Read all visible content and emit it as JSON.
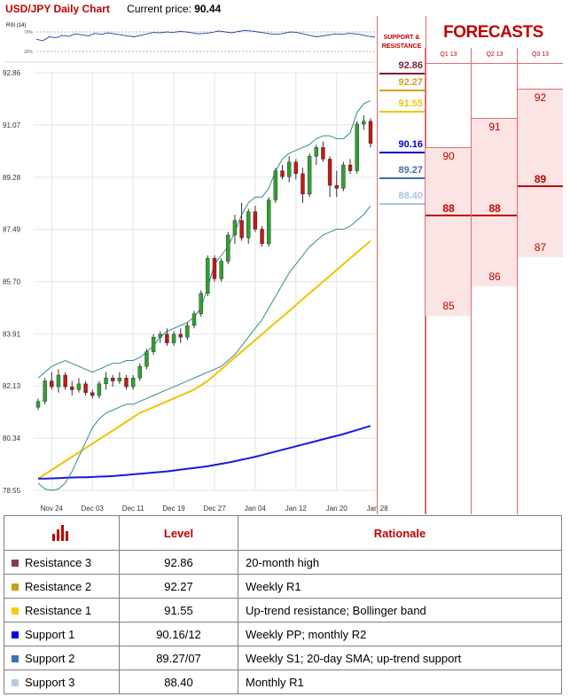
{
  "header": {
    "title": "USD/JPY Daily Chart",
    "price_label": "Current price:",
    "price_value": "90.44"
  },
  "rsi": {
    "label": "RSI (14)",
    "upper": "70%",
    "lower": "30%",
    "values": [
      55,
      52,
      60,
      58,
      63,
      61,
      66,
      64,
      62,
      67,
      65,
      68,
      66,
      64,
      62,
      60,
      63,
      66,
      69,
      68,
      70,
      69,
      71,
      70,
      68,
      66,
      67,
      69,
      72,
      70,
      68,
      71,
      73,
      72,
      70,
      68,
      66,
      65,
      67,
      70,
      69,
      66,
      63,
      60,
      62,
      64,
      66,
      65,
      67,
      66,
      64,
      61,
      60
    ]
  },
  "sr_panel": {
    "title": "SUPPORT & RESISTANCE",
    "levels": [
      {
        "label": "92.86",
        "value": 92.86,
        "color": "#7a1f33"
      },
      {
        "label": "92.27",
        "value": 92.27,
        "color": "#d4a017"
      },
      {
        "label": "91.55",
        "value": 91.55,
        "color": "#f1c40f"
      },
      {
        "label": "90.16",
        "value": 90.16,
        "color": "#0000cc"
      },
      {
        "label": "89.27",
        "value": 89.27,
        "color": "#3f6fa8"
      },
      {
        "label": "88.40",
        "value": 88.4,
        "color": "#a9c4dc"
      }
    ]
  },
  "forecasts": {
    "title": "FORECASTS",
    "quarters": [
      {
        "name": "Q1 13",
        "high": "90",
        "mid": "88",
        "low": "85",
        "high_v": 90,
        "mid_v": 88,
        "low_v": 85
      },
      {
        "name": "Q2 13",
        "high": "91",
        "mid": "88",
        "low": "86",
        "high_v": 91,
        "mid_v": 88,
        "low_v": 86
      },
      {
        "name": "Q3 13",
        "high": "92",
        "mid": "89",
        "low": "87",
        "high_v": 92,
        "mid_v": 89,
        "low_v": 87
      }
    ]
  },
  "chart_data": {
    "type": "line",
    "title": "USD/JPY Daily Chart",
    "ylim": [
      78.55,
      92.86
    ],
    "y_ticks": [
      "92.86",
      "91.07",
      "89.28",
      "87.49",
      "85.70",
      "83.91",
      "82.13",
      "80.34",
      "78.55"
    ],
    "y_tick_values": [
      92.86,
      91.07,
      89.28,
      87.49,
      85.7,
      83.91,
      82.13,
      80.34,
      78.55
    ],
    "x_ticks": [
      "Nov 24",
      "Dec 03",
      "Dec 11",
      "Dec 19",
      "Dec 27",
      "Jan 04",
      "Jan 12",
      "Jan 20",
      "Jan 28"
    ],
    "x_tick_index": [
      2,
      8,
      14,
      20,
      26,
      32,
      38,
      44,
      50
    ],
    "candles": [
      [
        81.4,
        81.7,
        81.3,
        81.6
      ],
      [
        81.6,
        82.4,
        81.5,
        82.3
      ],
      [
        82.3,
        82.6,
        82.0,
        82.1
      ],
      [
        82.1,
        82.7,
        81.9,
        82.5
      ],
      [
        82.5,
        82.6,
        82.0,
        82.1
      ],
      [
        82.1,
        82.3,
        81.8,
        82.0
      ],
      [
        82.0,
        82.4,
        81.9,
        82.2
      ],
      [
        82.2,
        82.3,
        81.8,
        81.9
      ],
      [
        81.9,
        82.0,
        81.7,
        81.8
      ],
      [
        81.8,
        82.3,
        81.7,
        82.2
      ],
      [
        82.2,
        82.6,
        82.0,
        82.4
      ],
      [
        82.4,
        82.5,
        82.1,
        82.3
      ],
      [
        82.3,
        82.6,
        82.2,
        82.4
      ],
      [
        82.4,
        82.5,
        82.0,
        82.1
      ],
      [
        82.1,
        82.5,
        82.0,
        82.4
      ],
      [
        82.4,
        82.9,
        82.3,
        82.8
      ],
      [
        82.8,
        83.4,
        82.7,
        83.3
      ],
      [
        83.3,
        83.9,
        83.2,
        83.8
      ],
      [
        83.8,
        84.0,
        83.6,
        83.9
      ],
      [
        83.9,
        84.1,
        83.5,
        83.6
      ],
      [
        83.6,
        84.0,
        83.5,
        83.9
      ],
      [
        83.9,
        84.1,
        83.6,
        83.8
      ],
      [
        83.8,
        84.3,
        83.7,
        84.2
      ],
      [
        84.2,
        84.7,
        84.1,
        84.6
      ],
      [
        84.6,
        85.4,
        84.5,
        85.3
      ],
      [
        85.3,
        86.6,
        85.2,
        86.5
      ],
      [
        86.5,
        86.6,
        85.7,
        85.8
      ],
      [
        85.8,
        86.5,
        85.7,
        86.4
      ],
      [
        86.4,
        87.4,
        86.3,
        87.3
      ],
      [
        87.3,
        88.0,
        87.0,
        87.8
      ],
      [
        87.8,
        88.4,
        87.1,
        87.2
      ],
      [
        87.2,
        88.2,
        87.0,
        88.1
      ],
      [
        88.1,
        88.3,
        87.4,
        87.5
      ],
      [
        87.5,
        87.6,
        86.9,
        87.0
      ],
      [
        87.0,
        88.6,
        86.9,
        88.5
      ],
      [
        88.5,
        89.6,
        88.4,
        89.5
      ],
      [
        89.5,
        89.7,
        89.2,
        89.3
      ],
      [
        89.3,
        90.0,
        89.1,
        89.8
      ],
      [
        89.8,
        89.9,
        89.2,
        89.4
      ],
      [
        89.4,
        89.6,
        88.4,
        88.7
      ],
      [
        88.7,
        90.1,
        88.6,
        90.0
      ],
      [
        90.0,
        90.4,
        89.7,
        90.3
      ],
      [
        90.3,
        90.5,
        89.8,
        89.9
      ],
      [
        89.9,
        90.0,
        88.6,
        89.0
      ],
      [
        89.0,
        89.5,
        88.6,
        88.9
      ],
      [
        88.9,
        89.8,
        88.8,
        89.7
      ],
      [
        89.7,
        89.9,
        89.4,
        89.5
      ],
      [
        89.5,
        91.2,
        89.4,
        91.1
      ],
      [
        91.1,
        91.4,
        90.9,
        91.2
      ],
      [
        91.2,
        91.3,
        90.3,
        90.44
      ]
    ],
    "series": [
      {
        "name": "",
        "color": "#f2c200",
        "values": [
          78.95,
          79.1,
          79.25,
          79.4,
          79.55,
          79.7,
          79.85,
          80.0,
          80.15,
          80.3,
          80.45,
          80.6,
          80.75,
          80.9,
          81.05,
          81.2,
          81.3,
          81.4,
          81.5,
          81.6,
          81.7,
          81.8,
          81.9,
          82.0,
          82.15,
          82.3,
          82.5,
          82.7,
          82.9,
          83.1,
          83.3,
          83.5,
          83.7,
          83.9,
          84.1,
          84.3,
          84.5,
          84.7,
          84.9,
          85.1,
          85.3,
          85.5,
          85.7,
          85.9,
          86.1,
          86.3,
          86.5,
          86.7,
          86.9,
          87.1
        ]
      },
      {
        "name": "",
        "color": "#1a1ad6",
        "values": [
          78.95,
          78.95,
          78.96,
          78.97,
          78.98,
          78.99,
          79.0,
          79.0,
          79.01,
          79.02,
          79.03,
          79.04,
          79.06,
          79.08,
          79.1,
          79.12,
          79.14,
          79.16,
          79.18,
          79.2,
          79.23,
          79.26,
          79.29,
          79.32,
          79.35,
          79.38,
          79.42,
          79.46,
          79.5,
          79.55,
          79.6,
          79.65,
          79.7,
          79.76,
          79.82,
          79.88,
          79.94,
          80.0,
          80.06,
          80.12,
          80.18,
          80.24,
          80.3,
          80.36,
          80.42,
          80.48,
          80.55,
          80.62,
          80.69,
          80.76
        ]
      },
      {
        "name": "",
        "color": "#2e8b8b",
        "values": [
          82.4,
          82.6,
          82.8,
          82.9,
          83.0,
          82.9,
          82.8,
          82.7,
          82.6,
          82.7,
          82.8,
          82.9,
          82.9,
          83.0,
          83.0,
          83.1,
          83.3,
          83.5,
          83.8,
          84.0,
          84.1,
          84.2,
          84.3,
          84.5,
          84.8,
          85.5,
          86.3,
          86.6,
          86.9,
          87.4,
          88.0,
          88.4,
          88.6,
          88.6,
          88.9,
          89.5,
          89.9,
          90.1,
          90.2,
          90.3,
          90.4,
          90.6,
          90.7,
          90.7,
          90.6,
          90.6,
          90.8,
          91.5,
          91.8,
          91.9
        ]
      },
      {
        "name": "",
        "color": "#2e8b8b",
        "values": [
          78.8,
          78.6,
          78.55,
          78.6,
          78.8,
          79.2,
          79.7,
          80.2,
          80.7,
          81.0,
          81.2,
          81.3,
          81.4,
          81.5,
          81.5,
          81.6,
          81.7,
          81.8,
          81.9,
          82.0,
          82.1,
          82.2,
          82.3,
          82.4,
          82.5,
          82.6,
          82.7,
          82.8,
          83.0,
          83.2,
          83.5,
          83.8,
          84.1,
          84.4,
          84.8,
          85.2,
          85.6,
          86.0,
          86.3,
          86.6,
          86.9,
          87.1,
          87.3,
          87.4,
          87.5,
          87.5,
          87.6,
          87.8,
          88.0,
          88.3
        ]
      }
    ]
  },
  "table": {
    "header": {
      "level": "Level",
      "rationale": "Rationale"
    },
    "rows": [
      {
        "name": "Resistance 3",
        "level": "92.86",
        "rationale": "20-month high",
        "color": "#8b3a4a"
      },
      {
        "name": "Resistance 2",
        "level": "92.27",
        "rationale": "Weekly R1",
        "color": "#c8a016"
      },
      {
        "name": "Resistance 1",
        "level": "91.55",
        "rationale": "Up-trend resistance; Bollinger band",
        "color": "#f2d200"
      },
      {
        "name": "Support 1",
        "level": "90.16/12",
        "rationale": "Weekly PP; monthly R2",
        "color": "#0000e0"
      },
      {
        "name": "Support 2",
        "level": "89.27/07",
        "rationale": "Weekly S1; 20-day SMA; up-trend support",
        "color": "#3f6fc0"
      },
      {
        "name": "Support 3",
        "level": "88.40",
        "rationale": "Monthly R1",
        "color": "#b5cde4"
      }
    ]
  }
}
